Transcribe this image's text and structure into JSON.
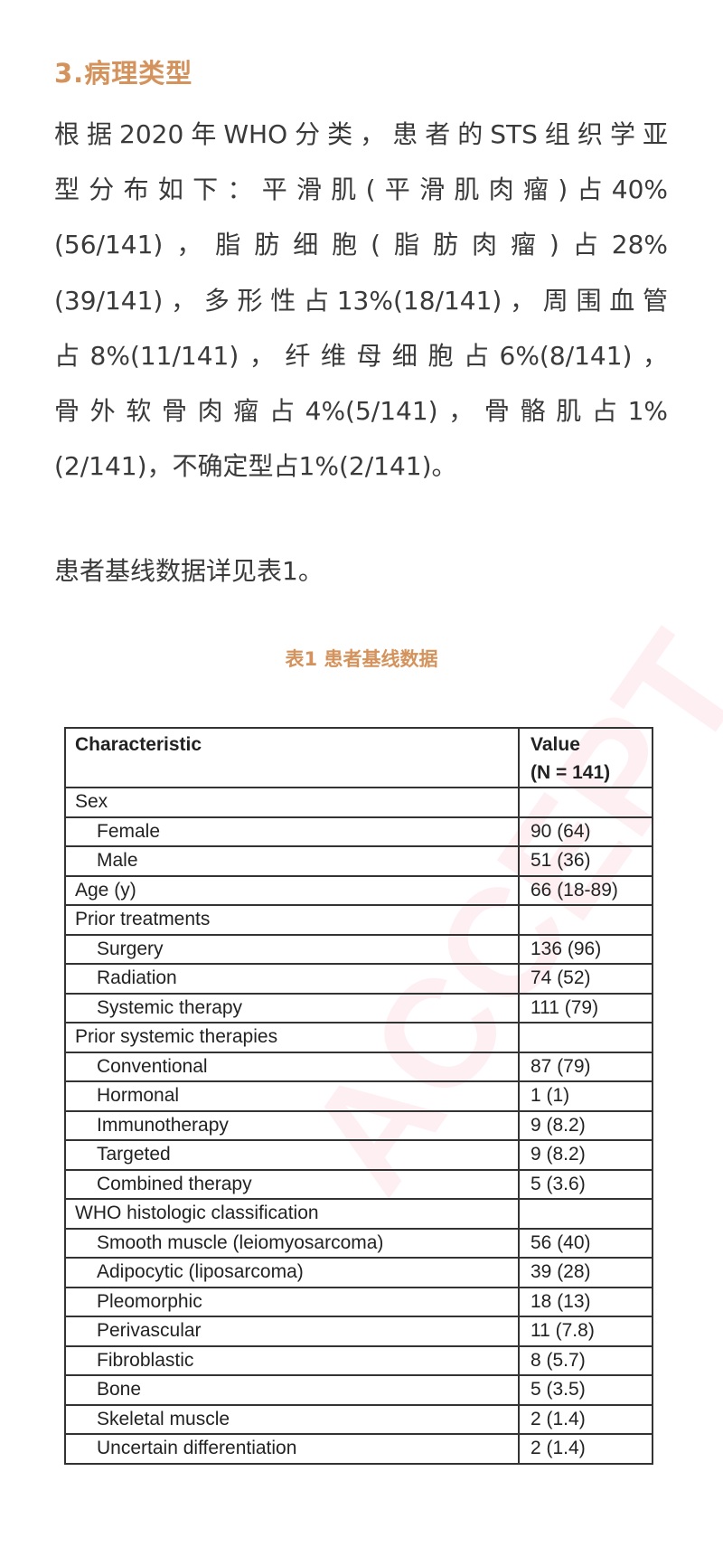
{
  "section_heading": "3.病理类型",
  "paragraph_lines": [
    "根据2020年WHO分类，患者的STS组织学亚",
    "型分布如下：平滑肌(平滑肌肉瘤)占40%",
    "(56/141)，脂肪细胞(脂肪肉瘤)占28%",
    "(39/141)，多形性占13%(18/141)，周围血管",
    "占8%(11/141)，纤维母细胞占6%(8/141)，",
    "骨外软骨肉瘤占4%(5/141)，骨骼肌占1%",
    "(2/141)，不确定型占1%(2/141)。"
  ],
  "note": "患者基线数据详见表1。",
  "table_caption": "表1  患者基线数据",
  "watermark": "ACCEPT",
  "table": {
    "header": {
      "col1": "Characteristic",
      "col2_line1": "Value",
      "col2_line2": "(N = 141)"
    },
    "rows": [
      {
        "label": "Sex",
        "value": "",
        "indent": false
      },
      {
        "label": "Female",
        "value": "90 (64)",
        "indent": true
      },
      {
        "label": "Male",
        "value": "51 (36)",
        "indent": true
      },
      {
        "label": "Age (y)",
        "value": "66 (18-89)",
        "indent": false
      },
      {
        "label": "Prior treatments",
        "value": "",
        "indent": false
      },
      {
        "label": "Surgery",
        "value": "136 (96)",
        "indent": true
      },
      {
        "label": "Radiation",
        "value": "74 (52)",
        "indent": true
      },
      {
        "label": "Systemic therapy",
        "value": "111 (79)",
        "indent": true
      },
      {
        "label": "Prior systemic therapies",
        "value": "",
        "indent": false
      },
      {
        "label": "Conventional",
        "value": "87 (79)",
        "indent": true
      },
      {
        "label": "Hormonal",
        "value": "1 (1)",
        "indent": true
      },
      {
        "label": "Immunotherapy",
        "value": "9 (8.2)",
        "indent": true
      },
      {
        "label": "Targeted",
        "value": "9 (8.2)",
        "indent": true
      },
      {
        "label": "Combined therapy",
        "value": "5 (3.6)",
        "indent": true
      },
      {
        "label": "WHO histologic classification",
        "value": "",
        "indent": false
      },
      {
        "label": "Smooth muscle (leiomyosarcoma)",
        "value": "56 (40)",
        "indent": true
      },
      {
        "label": "Adipocytic (liposarcoma)",
        "value": "39 (28)",
        "indent": true
      },
      {
        "label": "Pleomorphic",
        "value": "18 (13)",
        "indent": true
      },
      {
        "label": "Perivascular",
        "value": "11 (7.8)",
        "indent": true
      },
      {
        "label": "Fibroblastic",
        "value": "8 (5.7)",
        "indent": true
      },
      {
        "label": "Bone",
        "value": "5 (3.5)",
        "indent": true
      },
      {
        "label": "Skeletal muscle",
        "value": "2 (1.4)",
        "indent": true
      },
      {
        "label": "Uncertain differentiation",
        "value": "2 (1.4)",
        "indent": true
      }
    ]
  }
}
